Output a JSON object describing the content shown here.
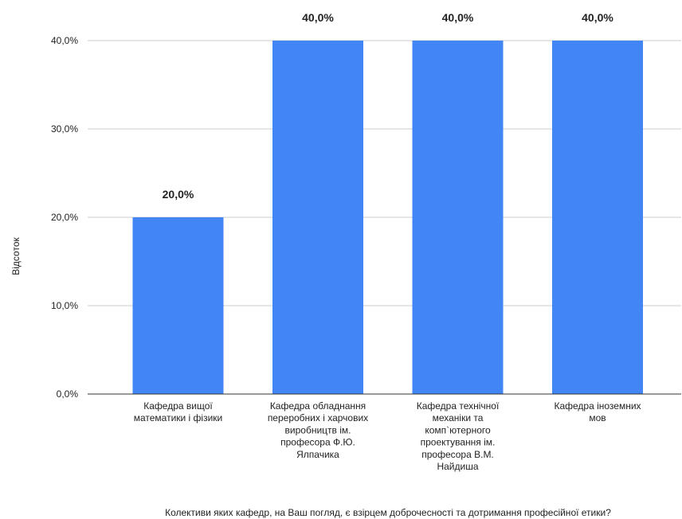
{
  "chart_data": {
    "type": "bar",
    "categories": [
      "Кафедра вищої математики і фізики",
      "Кафедра обладнання переробних і харчових виробництв ім. професора Ф.Ю. Ялпачика",
      "Кафедра технічної механіки та комп`ютерного проектування ім. професора В.М. Найдиша",
      "Кафедра іноземних мов"
    ],
    "category_lines": [
      [
        "Кафедра вищої",
        "математики і фізики"
      ],
      [
        "Кафедра обладнання",
        "переробних і харчових",
        "виробництв ім.",
        "професора Ф.Ю.",
        "Ялпачика"
      ],
      [
        "Кафедра технічної",
        "механіки та",
        "комп`ютерного",
        "проектування ім.",
        "професора В.М.",
        "Найдиша"
      ],
      [
        "Кафедра іноземних",
        "мов"
      ]
    ],
    "values": [
      20.0,
      40.0,
      40.0,
      40.0
    ],
    "data_labels": [
      "20,0%",
      "40,0%",
      "40,0%",
      "40,0%"
    ],
    "xlabel": "Колективи яких кафедр, на Ваш погляд, є взірцем доброчесності та дотримання професійної етики?",
    "ylabel": "Відсоток",
    "ylim": [
      0,
      40
    ],
    "yticks": [
      0,
      10,
      20,
      30,
      40
    ],
    "ytick_labels": [
      "0,0%",
      "10,0%",
      "20,0%",
      "30,0%",
      "40,0%"
    ],
    "grid": true,
    "legend": "none",
    "colors": {
      "bar": "#4285f4",
      "grid": "#cccccc",
      "axis": "#333333",
      "text": "#222222"
    }
  }
}
